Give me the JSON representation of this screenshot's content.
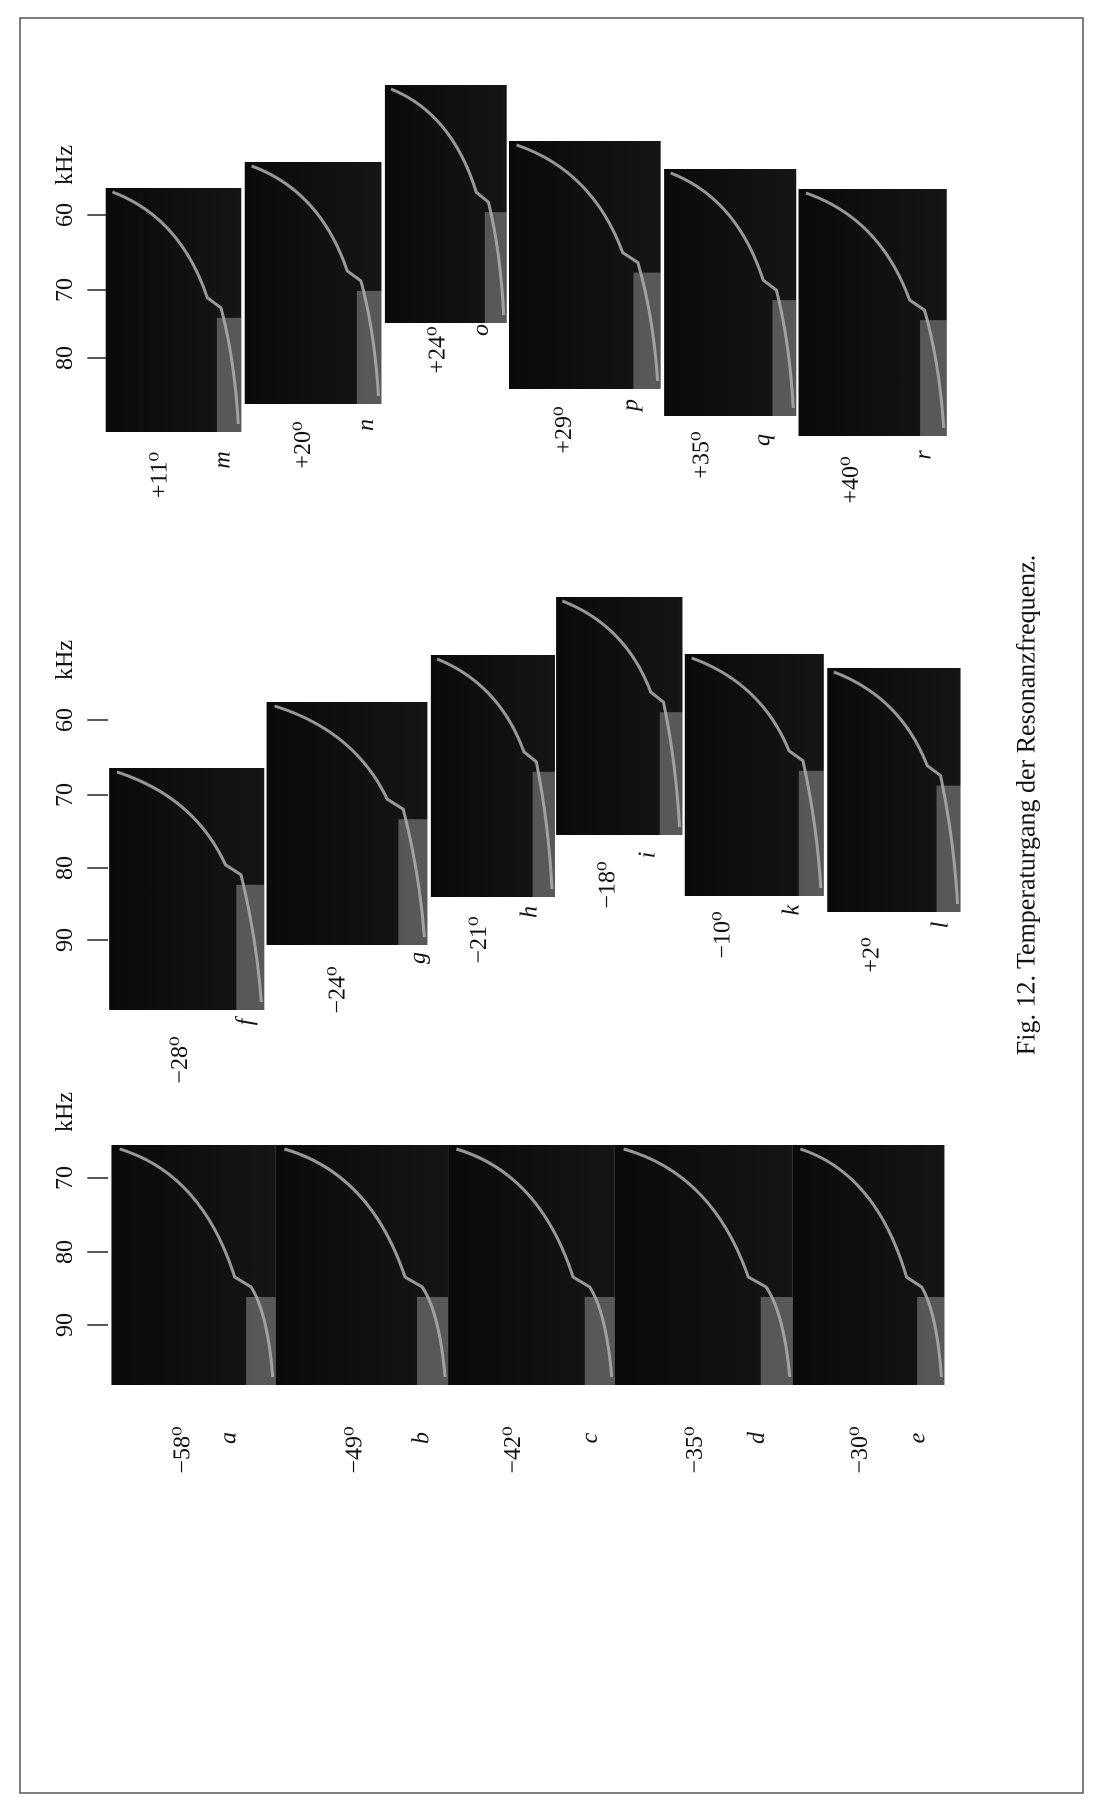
{
  "figure": {
    "caption": "Fig. 12. Temperaturgang der Resonanzfrequenz.",
    "groups": [
      {
        "ticks": [
          "90",
          "80",
          "70"
        ],
        "unit": "kHz",
        "panels": [
          {
            "label": "a",
            "temperature": "−58⁰"
          },
          {
            "label": "b",
            "temperature": "−49⁰"
          },
          {
            "label": "c",
            "temperature": "−42⁰"
          },
          {
            "label": "d",
            "temperature": "−35⁰"
          },
          {
            "label": "e",
            "temperature": "−30⁰"
          }
        ]
      },
      {
        "ticks": [
          "90",
          "80",
          "70",
          "60"
        ],
        "unit": "kHz",
        "panels": [
          {
            "label": "f",
            "temperature": "−28⁰"
          },
          {
            "label": "g",
            "temperature": "−24⁰"
          },
          {
            "label": "h",
            "temperature": "−21⁰"
          },
          {
            "label": "i",
            "temperature": "−18⁰"
          },
          {
            "label": "k",
            "temperature": "−10⁰"
          },
          {
            "label": "l",
            "temperature": "+2⁰"
          }
        ]
      },
      {
        "ticks": [
          "80",
          "70",
          "60"
        ],
        "unit": "kHz",
        "panels": [
          {
            "label": "m",
            "temperature": "+11⁰"
          },
          {
            "label": "n",
            "temperature": "+20⁰"
          },
          {
            "label": "o",
            "temperature": "+24⁰"
          },
          {
            "label": "p",
            "temperature": "+29⁰"
          },
          {
            "label": "q",
            "temperature": "+35⁰"
          },
          {
            "label": "r",
            "temperature": "+40⁰"
          }
        ]
      }
    ]
  }
}
